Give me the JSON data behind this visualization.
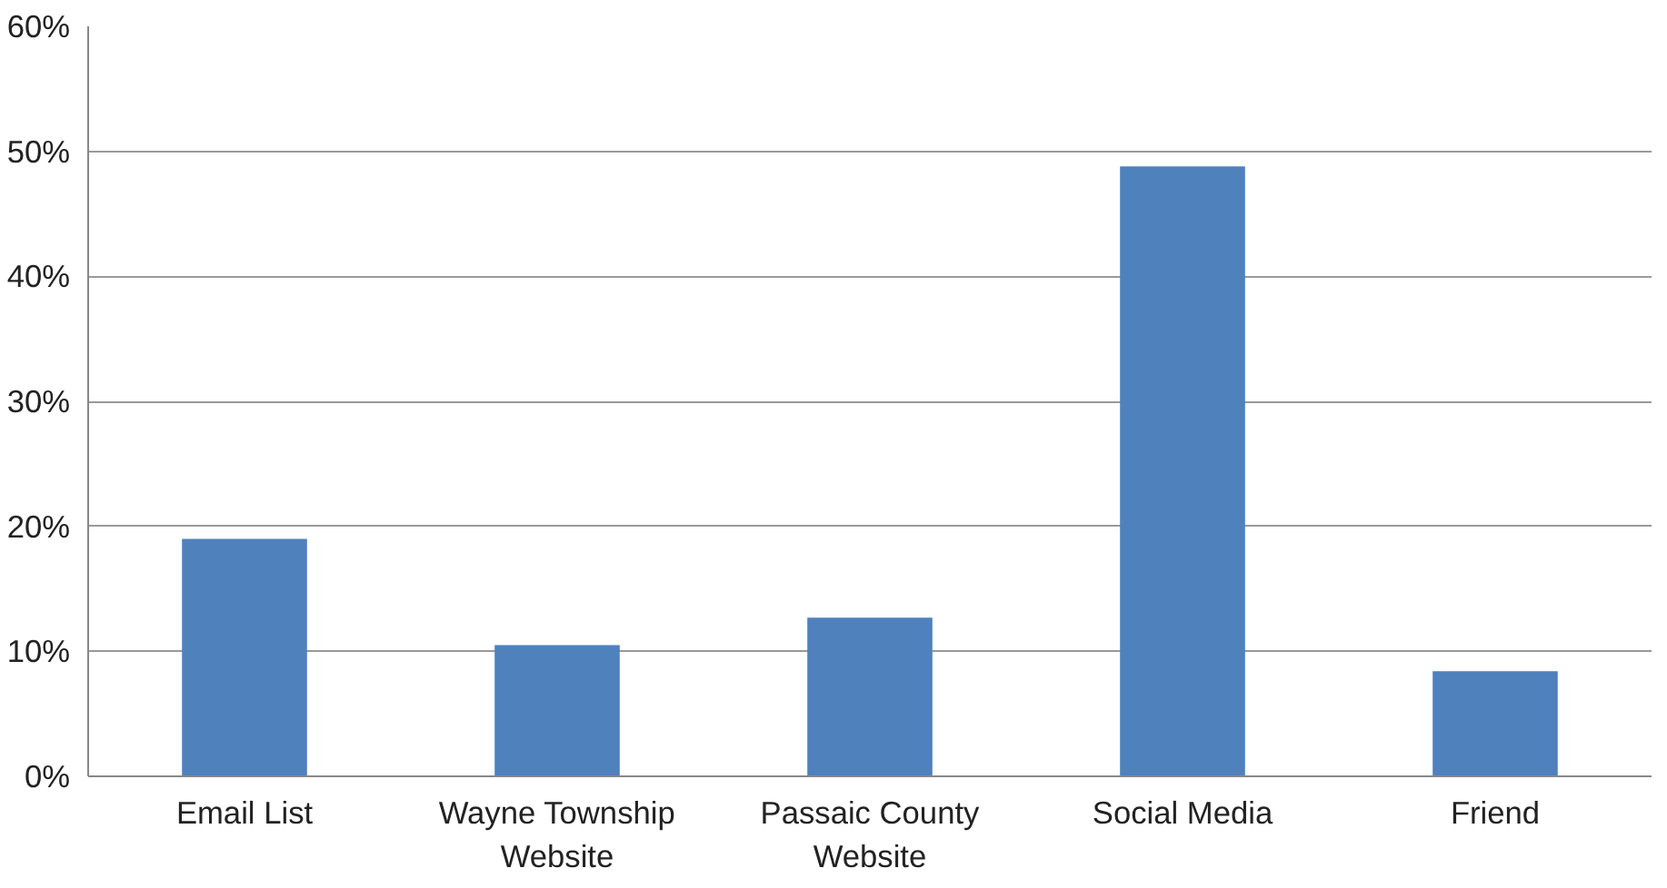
{
  "chart_data": {
    "type": "bar",
    "categories": [
      "Email List",
      "Wayne Township Website",
      "Passaic County Website",
      "Social Media",
      "Friend"
    ],
    "values": [
      19.0,
      10.5,
      12.7,
      48.8,
      8.4
    ],
    "color": "#4f81bd",
    "ylim": [
      0,
      60
    ],
    "yticks": [
      {
        "value": 0,
        "label": "0%"
      },
      {
        "value": 10,
        "label": "10%"
      },
      {
        "value": 20,
        "label": "20%"
      },
      {
        "value": 30,
        "label": "30%"
      },
      {
        "value": 40,
        "label": "40%"
      },
      {
        "value": 50,
        "label": "50%"
      },
      {
        "value": 60,
        "label": "60%"
      }
    ],
    "grid": "y"
  }
}
